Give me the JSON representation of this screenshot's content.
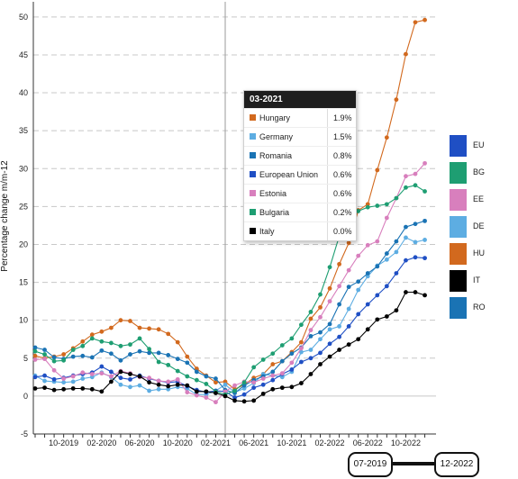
{
  "chart_data": {
    "type": "line",
    "ylabel": "Percentage change m/m-12",
    "xlabel": "",
    "ylim": [
      -5,
      52
    ],
    "yticks": [
      -5,
      0,
      5,
      10,
      15,
      20,
      25,
      30,
      35,
      40,
      45,
      50
    ],
    "x": [
      "07-2019",
      "08-2019",
      "09-2019",
      "10-2019",
      "11-2019",
      "12-2019",
      "01-2020",
      "02-2020",
      "03-2020",
      "04-2020",
      "05-2020",
      "06-2020",
      "07-2020",
      "08-2020",
      "09-2020",
      "10-2020",
      "11-2020",
      "12-2020",
      "01-2021",
      "02-2021",
      "03-2021",
      "04-2021",
      "05-2021",
      "06-2021",
      "07-2021",
      "08-2021",
      "09-2021",
      "10-2021",
      "11-2021",
      "12-2021",
      "01-2022",
      "02-2022",
      "03-2022",
      "04-2022",
      "05-2022",
      "06-2022",
      "07-2022",
      "08-2022",
      "09-2022",
      "10-2022",
      "11-2022",
      "12-2022"
    ],
    "xtick_labels": [
      "10-2019",
      "02-2020",
      "06-2020",
      "10-2020",
      "02-2021",
      "06-2021",
      "10-2021",
      "02-2022",
      "06-2022",
      "10-2022"
    ],
    "highlight": "03-2021",
    "series": [
      {
        "name": "Hungary",
        "code": "HU",
        "color": "#d2691e",
        "values": [
          5.3,
          5.0,
          5.2,
          5.5,
          6.3,
          7.2,
          8.1,
          8.5,
          9.0,
          10.0,
          9.9,
          9.0,
          8.9,
          8.8,
          8.2,
          7.1,
          5.2,
          3.6,
          2.7,
          1.8,
          1.9,
          0.9,
          1.5,
          2.4,
          2.9,
          4.2,
          4.6,
          5.8,
          7.1,
          10.2,
          11.7,
          14.2,
          17.4,
          20.2,
          24.5,
          25.3,
          29.8,
          34.1,
          39.1,
          45.1,
          49.3,
          49.6
        ]
      },
      {
        "name": "Germany",
        "code": "DE",
        "color": "#5dade2",
        "values": [
          2.7,
          2.0,
          1.9,
          1.8,
          1.9,
          2.3,
          2.5,
          3.1,
          2.5,
          1.5,
          1.2,
          1.4,
          0.7,
          0.9,
          0.9,
          1.2,
          1.0,
          0.2,
          0.2,
          0.7,
          1.5,
          0.5,
          1.0,
          1.7,
          2.9,
          2.7,
          2.5,
          3.2,
          5.8,
          6.1,
          7.5,
          8.8,
          9.2,
          11.5,
          14.0,
          15.8,
          17.2,
          18.0,
          19.0,
          20.9,
          20.3,
          20.6
        ]
      },
      {
        "name": "Romania",
        "code": "RO",
        "color": "#1a73b4",
        "values": [
          6.4,
          6.1,
          5.1,
          4.9,
          5.2,
          5.3,
          5.1,
          6.0,
          5.6,
          4.7,
          5.5,
          5.9,
          5.7,
          5.7,
          5.4,
          4.9,
          4.4,
          3.2,
          2.6,
          2.3,
          0.8,
          0.4,
          1.4,
          2.1,
          2.6,
          3.2,
          4.6,
          5.6,
          6.4,
          7.9,
          8.4,
          9.5,
          12.1,
          14.4,
          15.1,
          16.2,
          17.1,
          18.8,
          20.4,
          22.3,
          22.7,
          23.1
        ]
      },
      {
        "name": "European Union",
        "code": "EU",
        "color": "#1f4fc4",
        "values": [
          2.5,
          2.7,
          2.2,
          2.4,
          2.7,
          2.9,
          3.1,
          3.9,
          3.2,
          2.4,
          2.2,
          2.7,
          2.3,
          2.0,
          1.8,
          1.9,
          1.3,
          0.8,
          0.5,
          0.7,
          0.6,
          -0.2,
          0.2,
          1.1,
          1.5,
          2.1,
          2.9,
          3.5,
          4.5,
          5.0,
          5.7,
          6.9,
          7.8,
          9.2,
          10.8,
          12.1,
          13.3,
          14.5,
          16.2,
          17.9,
          18.3,
          18.2
        ]
      },
      {
        "name": "Estonia",
        "code": "EE",
        "color": "#d87fbd",
        "values": [
          4.8,
          4.9,
          3.4,
          2.3,
          2.6,
          3.1,
          2.9,
          3.0,
          2.6,
          3.3,
          3.0,
          2.5,
          2.4,
          2.0,
          1.9,
          2.2,
          0.5,
          0.1,
          -0.2,
          -0.8,
          0.6,
          1.4,
          1.9,
          1.8,
          2.3,
          2.7,
          3.0,
          4.4,
          6.3,
          8.7,
          10.4,
          12.5,
          14.5,
          16.6,
          18.5,
          19.9,
          20.4,
          23.5,
          26.1,
          29.0,
          29.3,
          30.7
        ]
      },
      {
        "name": "Bulgaria",
        "code": "BG",
        "color": "#1e9e72",
        "values": [
          5.9,
          5.5,
          4.6,
          4.7,
          6.1,
          6.6,
          7.6,
          7.2,
          7.0,
          6.6,
          6.8,
          7.6,
          6.2,
          4.5,
          4.1,
          3.3,
          2.6,
          2.1,
          1.6,
          0.6,
          0.2,
          0.7,
          1.8,
          3.8,
          4.8,
          5.6,
          6.7,
          7.6,
          9.4,
          11.1,
          13.4,
          17.0,
          21.1,
          23.2,
          24.4,
          24.9,
          25.1,
          25.3,
          26.1,
          27.5,
          27.8,
          27.0
        ]
      },
      {
        "name": "Italy",
        "code": "IT",
        "color": "#000000",
        "values": [
          1.0,
          1.1,
          0.8,
          0.9,
          1.0,
          1.0,
          0.9,
          0.6,
          1.9,
          3.2,
          2.9,
          2.6,
          1.8,
          1.5,
          1.3,
          1.5,
          1.4,
          0.6,
          0.6,
          0.4,
          0.0,
          -0.6,
          -0.7,
          -0.6,
          0.3,
          0.9,
          1.1,
          1.2,
          1.7,
          2.9,
          4.2,
          5.2,
          6.1,
          6.8,
          7.5,
          8.8,
          10.1,
          10.5,
          11.3,
          13.7,
          13.7,
          13.3
        ]
      }
    ],
    "legend_order": [
      "EU",
      "BG",
      "EE",
      "DE",
      "HU",
      "IT",
      "RO"
    ]
  },
  "tooltip": {
    "title": "03-2021",
    "rows": [
      {
        "name": "Hungary",
        "value": "1.9%",
        "color": "#d2691e"
      },
      {
        "name": "Germany",
        "value": "1.5%",
        "color": "#5dade2"
      },
      {
        "name": "Romania",
        "value": "0.8%",
        "color": "#1a73b4"
      },
      {
        "name": "European Union",
        "value": "0.6%",
        "color": "#1f4fc4"
      },
      {
        "name": "Estonia",
        "value": "0.6%",
        "color": "#d87fbd"
      },
      {
        "name": "Bulgaria",
        "value": "0.2%",
        "color": "#1e9e72"
      },
      {
        "name": "Italy",
        "value": "0.0%",
        "color": "#000000"
      }
    ]
  },
  "legend": [
    {
      "code": "EU",
      "color": "#1f4fc4"
    },
    {
      "code": "BG",
      "color": "#1e9e72"
    },
    {
      "code": "EE",
      "color": "#d87fbd"
    },
    {
      "code": "DE",
      "color": "#5dade2"
    },
    {
      "code": "HU",
      "color": "#d2691e"
    },
    {
      "code": "IT",
      "color": "#000000"
    },
    {
      "code": "RO",
      "color": "#1a73b4"
    }
  ],
  "range_selector": {
    "start": "07-2019",
    "end": "12-2022"
  }
}
